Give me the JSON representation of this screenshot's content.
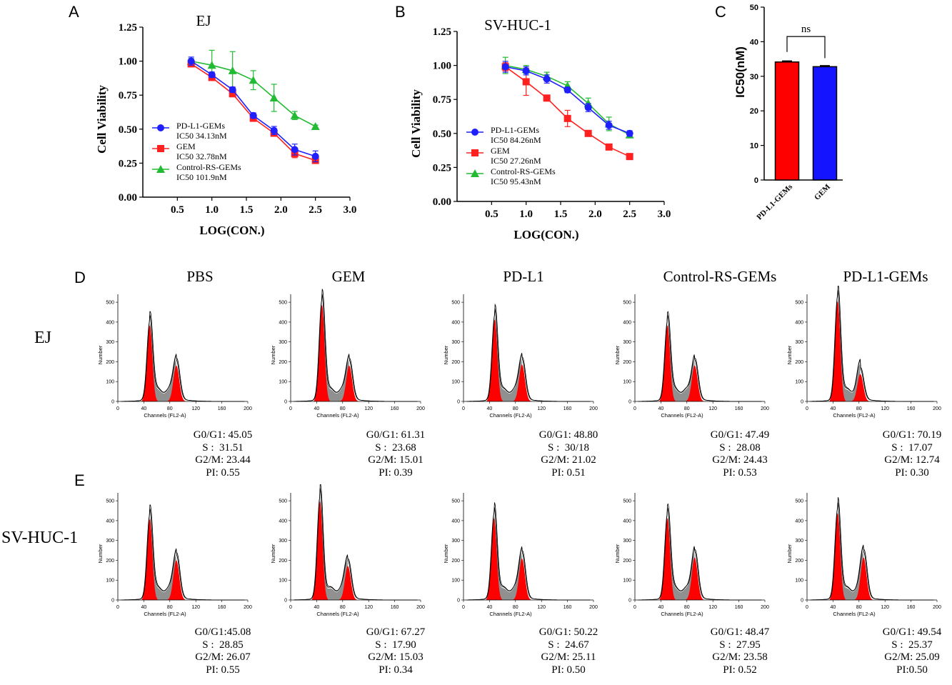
{
  "panels": {
    "A": "A",
    "B": "B",
    "C": "C",
    "D": "D",
    "E": "E"
  },
  "chart_data": [
    {
      "type": "line",
      "title": "EJ",
      "xlabel": "LOG(CON.)",
      "ylabel": "Cell Viability",
      "xlim": [
        0,
        3.0
      ],
      "ylim": [
        0,
        1.25
      ],
      "xticks": [
        "0.5",
        "1.0",
        "1.5",
        "2.0",
        "2.5",
        "3.0"
      ],
      "yticks": [
        "0.00",
        "0.25",
        "0.50",
        "0.75",
        "1.00",
        "1.25"
      ],
      "x": [
        0.7,
        1.0,
        1.3,
        1.6,
        1.9,
        2.2,
        2.5
      ],
      "legend": [
        {
          "name": "PD-L1-GEMs",
          "ic50": "IC50 34.13nM"
        },
        {
          "name": "GEM",
          "ic50": "IC50 32.78nM"
        },
        {
          "name": "Control-RS-GEMs",
          "ic50": "IC50 101.9nM"
        }
      ],
      "series": [
        {
          "name": "PD-L1-GEMs",
          "color": "#1f1fff",
          "marker": "circle",
          "values": [
            1.0,
            0.9,
            0.79,
            0.6,
            0.49,
            0.35,
            0.3
          ],
          "err": [
            0.03,
            0.02,
            0.02,
            0.02,
            0.03,
            0.04,
            0.04
          ]
        },
        {
          "name": "GEM",
          "color": "#ff2020",
          "marker": "square",
          "values": [
            0.98,
            0.88,
            0.76,
            0.58,
            0.47,
            0.32,
            0.27
          ],
          "err": [
            0.02,
            0.02,
            0.02,
            0.02,
            0.02,
            0.03,
            0.02
          ]
        },
        {
          "name": "Control-RS-GEMs",
          "color": "#22bb33",
          "marker": "triangle",
          "values": [
            1.0,
            0.97,
            0.93,
            0.86,
            0.73,
            0.6,
            0.52
          ],
          "err": [
            0.02,
            0.11,
            0.14,
            0.07,
            0.1,
            0.03,
            0.01
          ]
        }
      ]
    },
    {
      "type": "line",
      "title": "SV-HUC-1",
      "xlabel": "LOG(CON.)",
      "ylabel": "Cell Viability",
      "xlim": [
        0,
        3.0
      ],
      "ylim": [
        0,
        1.25
      ],
      "xticks": [
        "0.5",
        "1.0",
        "1.5",
        "2.0",
        "2.5",
        "3.0"
      ],
      "yticks": [
        "0.00",
        "0.25",
        "0.50",
        "0.75",
        "1.00",
        "1.25"
      ],
      "x": [
        0.7,
        1.0,
        1.3,
        1.6,
        1.9,
        2.2,
        2.5
      ],
      "legend": [
        {
          "name": "PD-L1-GEMs",
          "ic50": "IC50 84.26nM"
        },
        {
          "name": "GEM",
          "ic50": "IC50 27.26nM"
        },
        {
          "name": "Control-RS-GEMs",
          "ic50": "IC50 95.43nM"
        }
      ],
      "series": [
        {
          "name": "PD-L1-GEMs",
          "color": "#1f1fff",
          "marker": "circle",
          "values": [
            0.99,
            0.96,
            0.9,
            0.82,
            0.69,
            0.56,
            0.5
          ],
          "err": [
            0.04,
            0.03,
            0.03,
            0.02,
            0.03,
            0.03,
            0.02
          ]
        },
        {
          "name": "GEM",
          "color": "#ff2020",
          "marker": "square",
          "values": [
            0.99,
            0.88,
            0.76,
            0.61,
            0.5,
            0.4,
            0.33
          ],
          "err": [
            0.03,
            0.1,
            0.02,
            0.06,
            0.02,
            0.02,
            0.02
          ]
        },
        {
          "name": "Control-RS-GEMs",
          "color": "#22bb33",
          "marker": "triangle",
          "values": [
            1.0,
            0.97,
            0.92,
            0.85,
            0.72,
            0.57,
            0.49
          ],
          "err": [
            0.06,
            0.03,
            0.03,
            0.03,
            0.04,
            0.05,
            0.02
          ]
        }
      ]
    },
    {
      "type": "bar",
      "title": "",
      "ylabel": "IC50(nM)",
      "ylim": [
        0,
        50
      ],
      "yticks": [
        "0",
        "10",
        "20",
        "30",
        "40",
        "50"
      ],
      "categories": [
        "PD-L1-GEMs",
        "GEM"
      ],
      "values": [
        34.13,
        32.78
      ],
      "err": [
        0.3,
        0.3
      ],
      "colors": [
        "#ff0000",
        "#1414ff"
      ],
      "annotation": "ns"
    }
  ],
  "flow": {
    "columns": [
      "PBS",
      "GEM",
      "PD-L1",
      "Control-RS-GEMs",
      "PD-L1-GEMs"
    ],
    "rows": [
      "EJ",
      "SV-HUC-1"
    ],
    "axis": {
      "xlabel": "Channels (FL2-A)",
      "ylabel": "Number",
      "xticks": [
        "0",
        "40",
        "80",
        "120",
        "160",
        "200"
      ],
      "yticks": [
        "0",
        "100",
        "200",
        "300",
        "400",
        "500"
      ]
    },
    "EJ": [
      {
        "g0g1": "G0/G1: 45.05",
        "s": "S :  31.51",
        "g2m": "G2/M: 23.44",
        "pi": "PI: 0.55",
        "peak1": 390,
        "peak2": 190,
        "pos1": 49,
        "pos2": 90
      },
      {
        "g0g1": "G0/G1: 61.31",
        "s": "S :  23.68",
        "g2m": "G2/M: 15.01",
        "pi": "PI: 0.39",
        "peak1": 495,
        "peak2": 190,
        "pos1": 48,
        "pos2": 90
      },
      {
        "g0g1": "G0/G1: 48.80",
        "s": "S :  30/18",
        "g2m": "G2/M: 21.02",
        "pi": "PI: 0.51",
        "peak1": 420,
        "peak2": 195,
        "pos1": 48,
        "pos2": 90
      },
      {
        "g0g1": "G0/G1: 47.49",
        "s": "S :  28.08",
        "g2m": "G2/M: 24.43",
        "pi": "PI: 0.53",
        "peak1": 390,
        "peak2": 190,
        "pos1": 50,
        "pos2": 92
      },
      {
        "g0g1": "G0/G1: 70.19",
        "s": "S :  17.07",
        "g2m": "G2/M: 12.74",
        "pi": "PI: 0.30",
        "peak1": 515,
        "peak2": 145,
        "pos1": 47,
        "pos2": 82
      }
    ],
    "SV-HUC-1": [
      {
        "g0g1": "G0/G1:45.08",
        "s": "S :  28.85",
        "g2m": "G2/M: 26.07",
        "pi": "PI: 0.55",
        "peak1": 415,
        "peak2": 210,
        "pos1": 49,
        "pos2": 90
      },
      {
        "g0g1": "G0/G1: 67.27",
        "s": "S :  17.90",
        "g2m": "G2/M: 15.03",
        "pi": "PI: 0.34",
        "peak1": 505,
        "peak2": 180,
        "pos1": 45,
        "pos2": 88
      },
      {
        "g0g1": "G0/G1: 50.22",
        "s": "S :  24.67",
        "g2m": "G2/M: 25.11",
        "pi": "PI: 0.50",
        "peak1": 420,
        "peak2": 220,
        "pos1": 47,
        "pos2": 90
      },
      {
        "g0g1": "G0/G1: 48.47",
        "s": "S :  27.95",
        "g2m": "G2/M: 23.58",
        "pi": "PI: 0.52",
        "peak1": 420,
        "peak2": 225,
        "pos1": 50,
        "pos2": 92
      },
      {
        "g0g1": "G0/G1: 49.54",
        "s": "S :  25.37",
        "g2m": "G2/M: 25.09",
        "pi": "PI:0.50",
        "peak1": 445,
        "peak2": 225,
        "pos1": 47,
        "pos2": 87
      }
    ]
  }
}
